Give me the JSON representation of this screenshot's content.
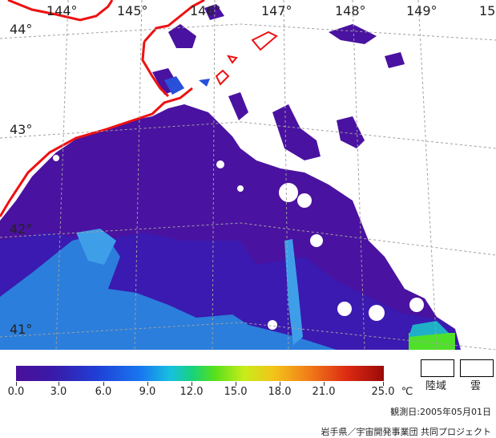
{
  "map": {
    "lon_labels": [
      "144°",
      "145°",
      "146°",
      "147°",
      "148°",
      "149°",
      "15"
    ],
    "lat_labels": [
      "44°",
      "43°",
      "42°",
      "41°"
    ]
  },
  "colorbar": {
    "ticks": [
      "0.0",
      "3.0",
      "6.0",
      "9.0",
      "12.0",
      "15.0",
      "18.0",
      "21.0",
      "25.0"
    ],
    "unit": "℃",
    "range": [
      0,
      25
    ]
  },
  "legend": {
    "land": "陸域",
    "cloud": "雲"
  },
  "footer": {
    "observation_date": "観測日:2005年05月01日",
    "credit": "岩手県／宇宙開発事業団  共同プロジェクト"
  },
  "colors": {
    "coast": "#ee1111",
    "sea_base": "#4a12a0",
    "cool_water": "#2a8ae0",
    "warm_patch": "#4fe02a"
  }
}
